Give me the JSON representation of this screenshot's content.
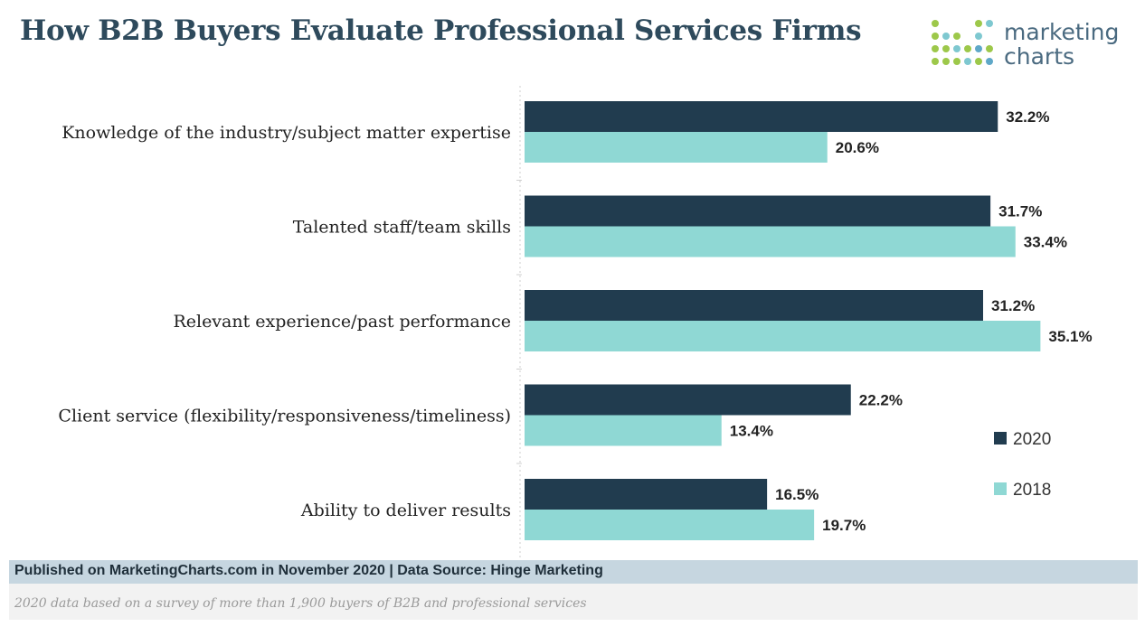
{
  "header": {
    "title": "How B2B Buyers Evaluate Professional Services Firms",
    "logo_line1": "marketing",
    "logo_line2": "charts"
  },
  "colors": {
    "series_2020": "#213c4f",
    "series_2018": "#8fd8d4",
    "title": "#2e4a5c",
    "logo_dots": [
      "#5fa8c8",
      "#9dc84a",
      "#7ec8d0"
    ]
  },
  "chart_data": {
    "type": "bar",
    "orientation": "horizontal",
    "categories": [
      "Knowledge of the industry/subject matter expertise",
      "Talented staff/team skills",
      "Relevant experience/past performance",
      "Client service (flexibility/responsiveness/timeliness)",
      "Ability to deliver results"
    ],
    "series": [
      {
        "name": "2020",
        "values": [
          32.2,
          31.7,
          31.2,
          22.2,
          16.5
        ],
        "labels": [
          "32.2%",
          "31.7%",
          "31.2%",
          "22.2%",
          "16.5%"
        ]
      },
      {
        "name": "2018",
        "values": [
          20.6,
          33.4,
          35.1,
          13.4,
          19.7
        ],
        "labels": [
          "20.6%",
          "33.4%",
          "35.1%",
          "13.4%",
          "19.7%"
        ]
      }
    ],
    "xlim": [
      0,
      36
    ],
    "legend_position": "right",
    "grid": false
  },
  "footer": {
    "published": "Published on MarketingCharts.com in November 2020 | Data Source: Hinge Marketing",
    "note": "2020 data based on a survey of more than 1,900 buyers of B2B and professional services"
  }
}
